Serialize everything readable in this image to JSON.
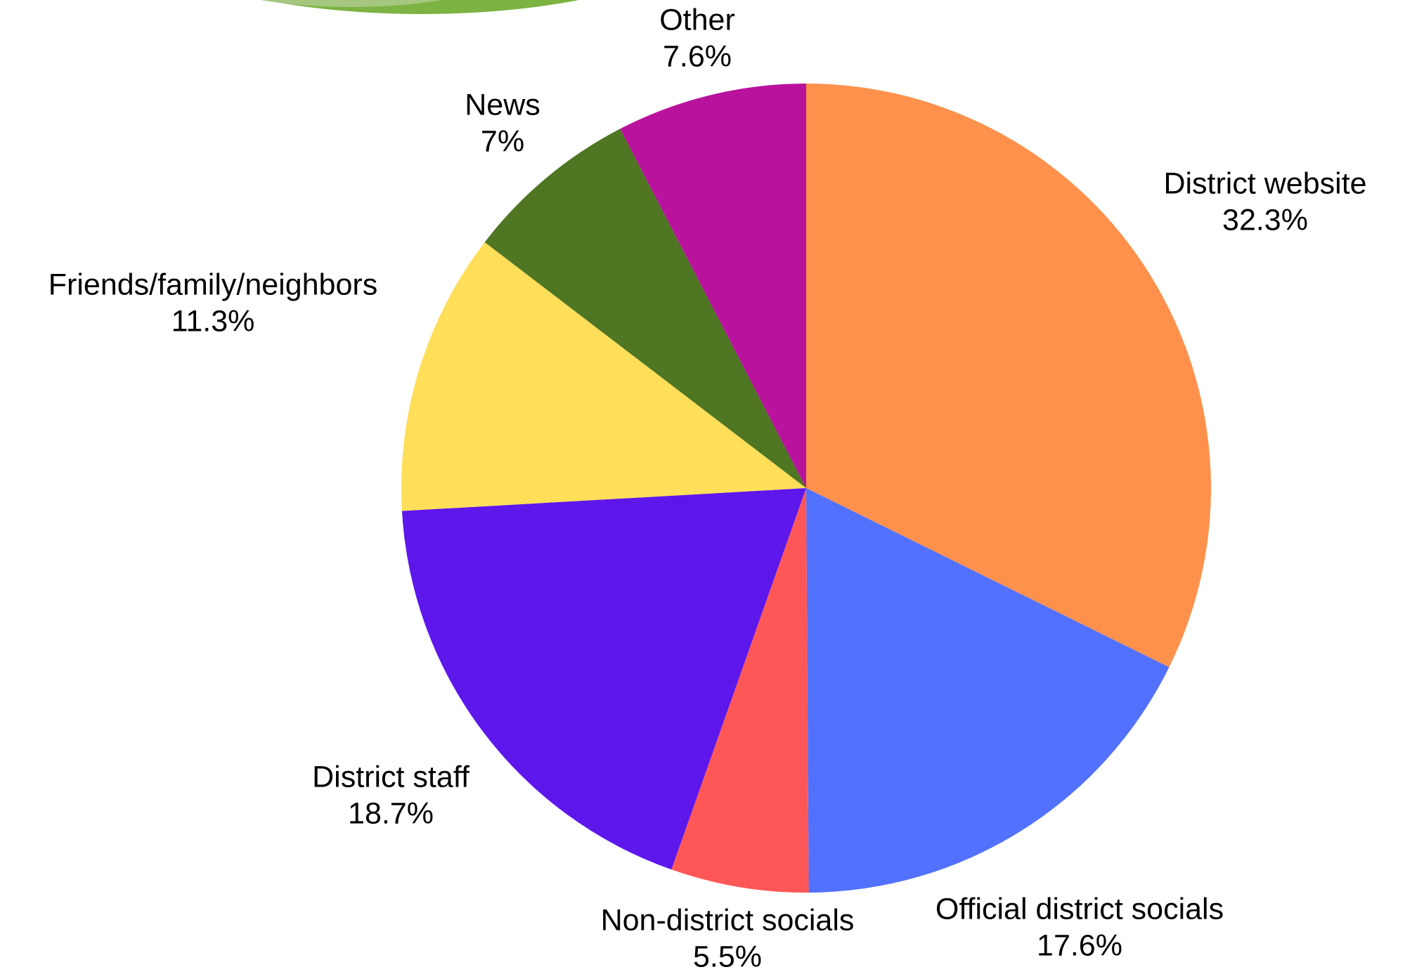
{
  "chart_data": {
    "type": "pie",
    "categories": [
      "District website",
      "Official district socials",
      "Non-district socials",
      "District staff",
      "Friends/family/neighbors",
      "News",
      "Other"
    ],
    "values": [
      32.3,
      17.6,
      5.5,
      18.7,
      11.3,
      7,
      7.6
    ],
    "value_labels": [
      "32.3%",
      "17.6%",
      "5.5%",
      "18.7%",
      "11.3%",
      "7%",
      "7.6%"
    ],
    "colors": [
      "#FF914D",
      "#5271FF",
      "#FF5757",
      "#5E17EB",
      "#FFDE59",
      "#4E7623",
      "#B9129C"
    ]
  }
}
